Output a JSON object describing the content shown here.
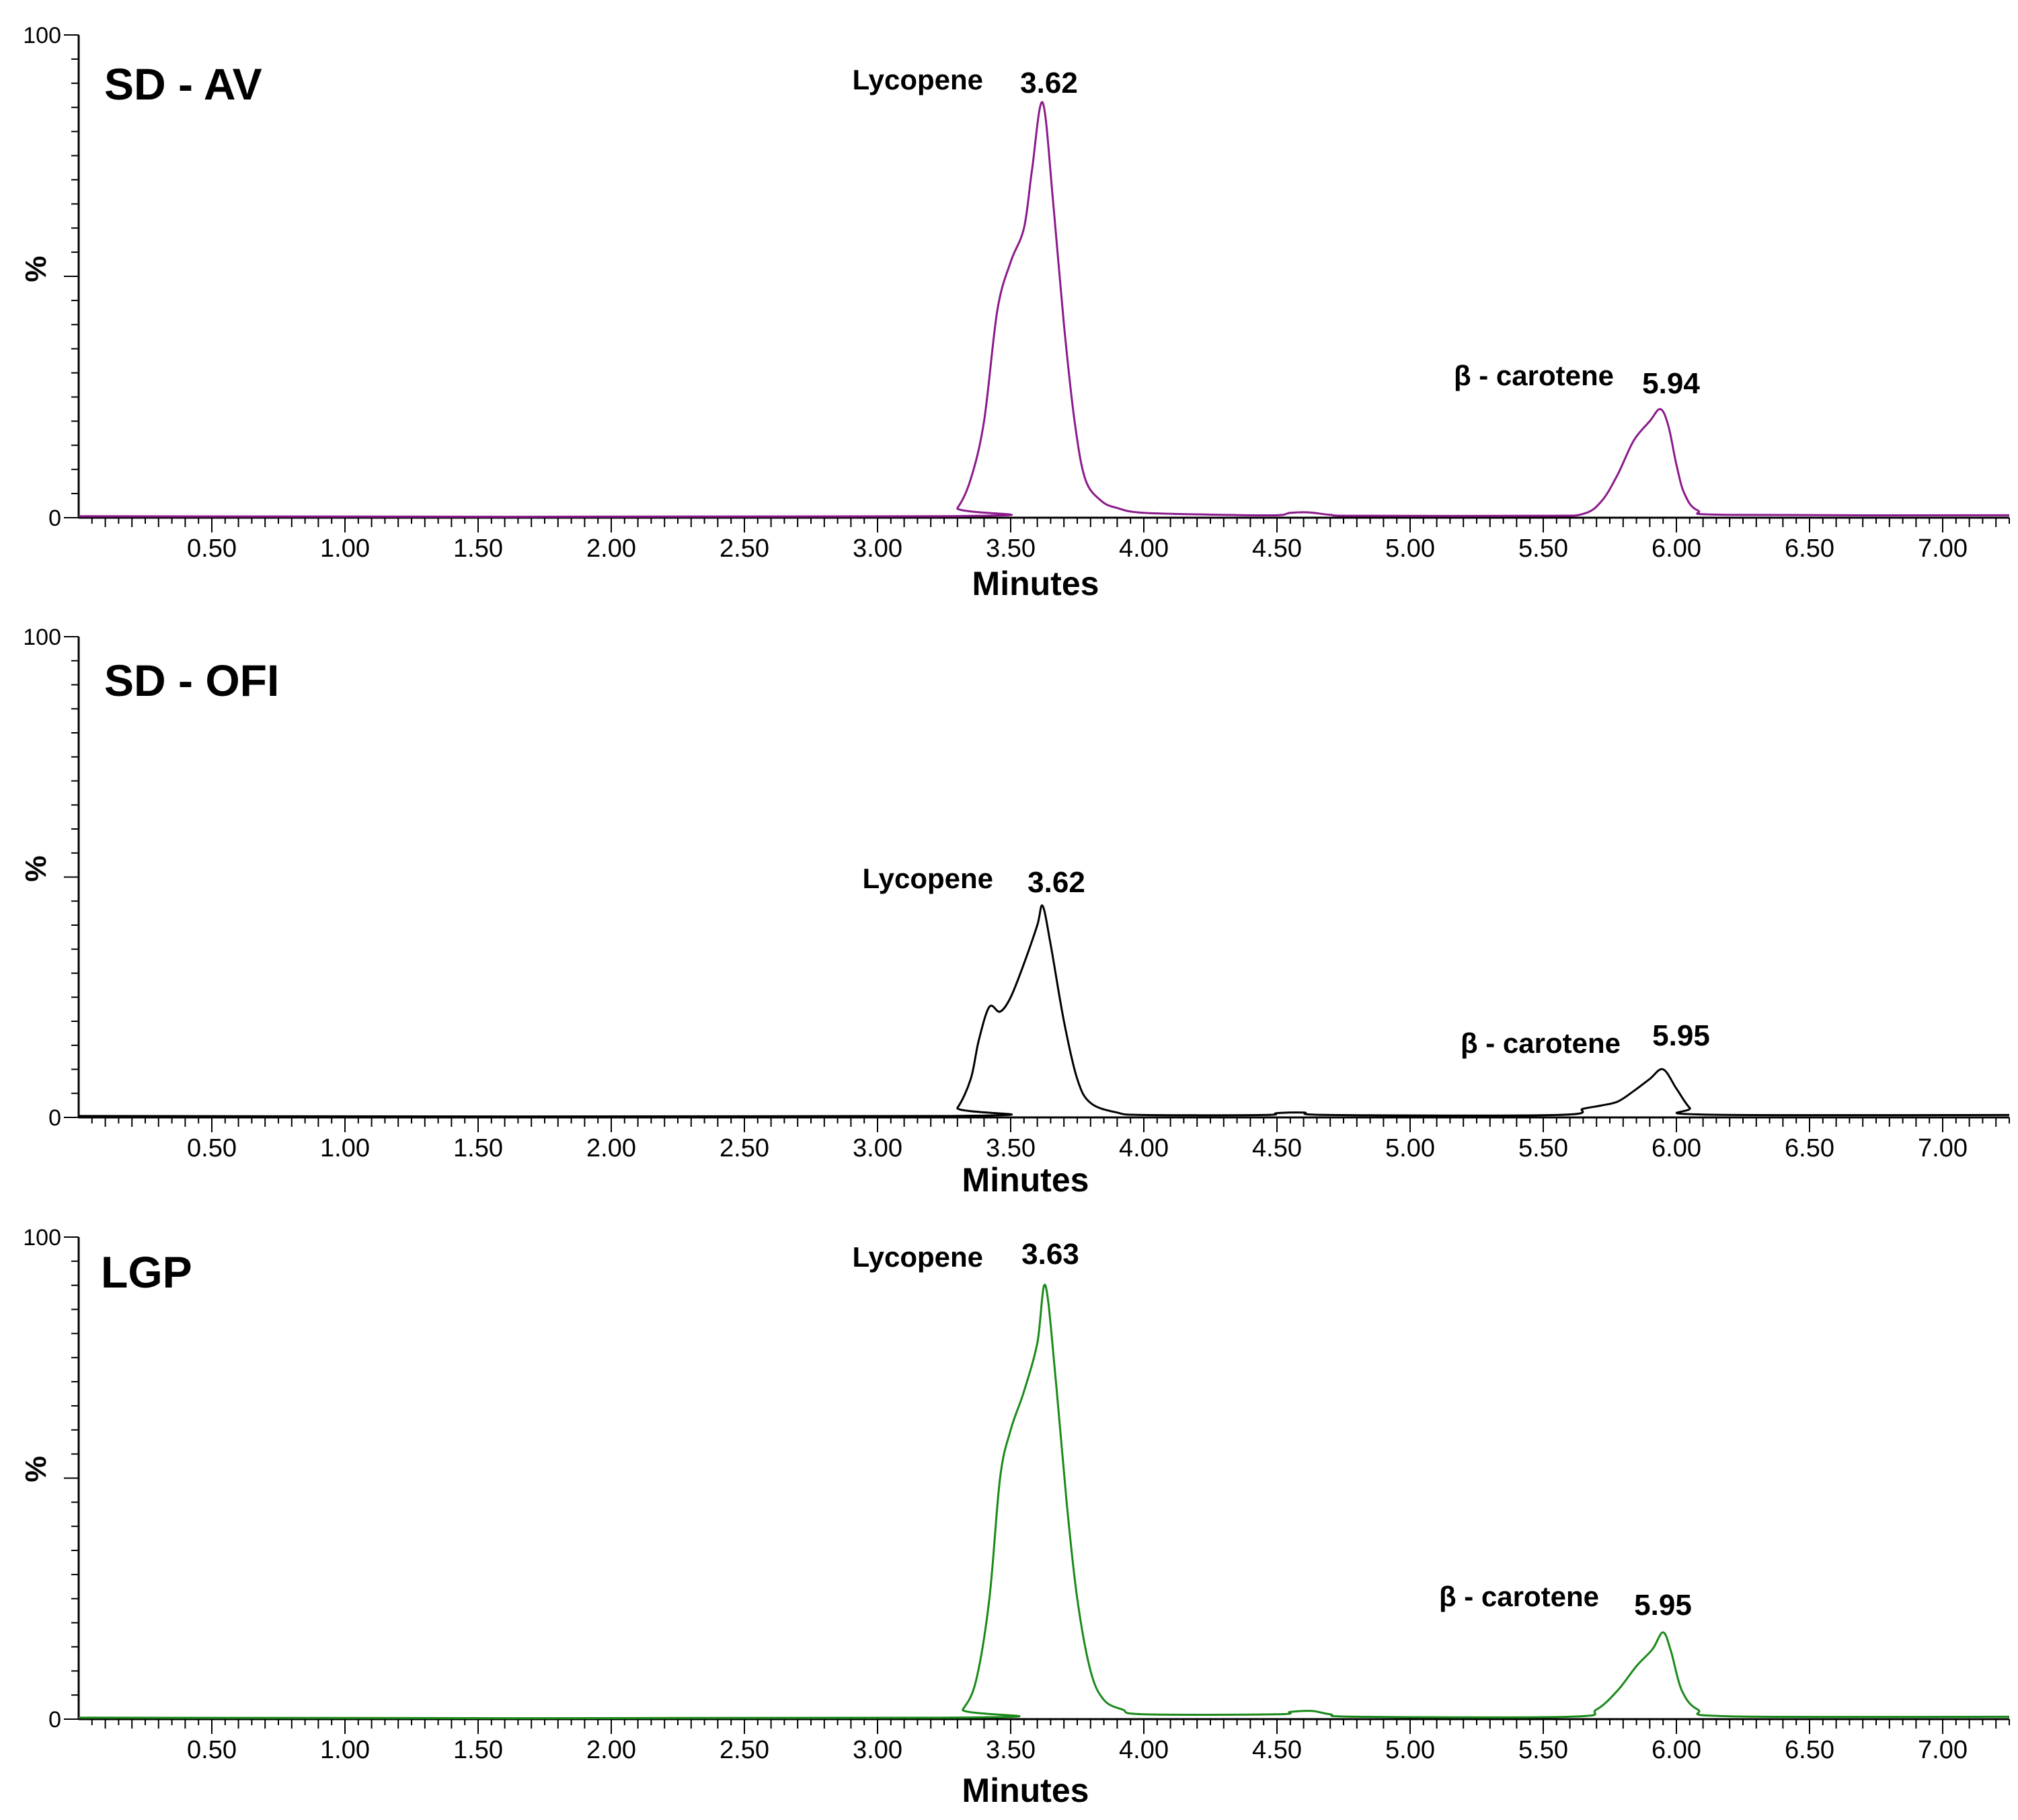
{
  "chart_data": [
    {
      "type": "line",
      "title": "SD - AV",
      "xlabel": "Minutes",
      "ylabel": "%",
      "xlim": [
        0,
        7.25
      ],
      "ylim": [
        0,
        100
      ],
      "x_ticks": [
        "0.50",
        "1.00",
        "1.50",
        "2.00",
        "2.50",
        "3.00",
        "3.50",
        "4.00",
        "4.50",
        "5.00",
        "5.50",
        "6.00",
        "6.50",
        "7.00"
      ],
      "y_ticks": [
        "0",
        "100"
      ],
      "grid": false,
      "series": [
        {
          "color": "#8b1a8b",
          "points": [
            [
              0,
              0.3
            ],
            [
              3.25,
              0.3
            ],
            [
              3.3,
              2
            ],
            [
              3.35,
              8
            ],
            [
              3.4,
              20
            ],
            [
              3.45,
              43
            ],
            [
              3.5,
              53
            ],
            [
              3.55,
              60
            ],
            [
              3.58,
              72
            ],
            [
              3.62,
              86
            ],
            [
              3.66,
              65
            ],
            [
              3.7,
              40
            ],
            [
              3.74,
              20
            ],
            [
              3.78,
              8
            ],
            [
              3.84,
              3.5
            ],
            [
              3.9,
              2
            ],
            [
              4.0,
              1
            ],
            [
              4.3,
              0.6
            ],
            [
              4.5,
              0.5
            ],
            [
              4.55,
              1
            ],
            [
              4.62,
              1.1
            ],
            [
              4.7,
              0.6
            ],
            [
              4.8,
              0.4
            ],
            [
              5.5,
              0.4
            ],
            [
              5.65,
              0.8
            ],
            [
              5.72,
              3.5
            ],
            [
              5.78,
              9
            ],
            [
              5.84,
              16
            ],
            [
              5.9,
              20
            ],
            [
              5.94,
              22.5
            ],
            [
              5.97,
              19
            ],
            [
              6.0,
              11
            ],
            [
              6.03,
              5
            ],
            [
              6.08,
              1.5
            ],
            [
              6.2,
              0.6
            ],
            [
              7.25,
              0.5
            ]
          ]
        }
      ],
      "annotations": [
        {
          "name": "Lycopene",
          "rt": "3.62"
        },
        {
          "name": "β - carotene",
          "rt": "5.94"
        }
      ]
    },
    {
      "type": "line",
      "title": "SD - OFI",
      "xlabel": "Minutes",
      "ylabel": "%",
      "xlim": [
        0,
        7.25
      ],
      "ylim": [
        0,
        100
      ],
      "x_ticks": [
        "0.50",
        "1.00",
        "1.50",
        "2.00",
        "2.50",
        "3.00",
        "3.50",
        "4.00",
        "4.50",
        "5.00",
        "5.50",
        "6.00",
        "6.50",
        "7.00"
      ],
      "y_ticks": [
        "0",
        "100"
      ],
      "grid": false,
      "series": [
        {
          "color": "#000000",
          "points": [
            [
              0,
              0.3
            ],
            [
              3.25,
              0.3
            ],
            [
              3.3,
              2
            ],
            [
              3.35,
              8
            ],
            [
              3.38,
              16
            ],
            [
              3.42,
              23
            ],
            [
              3.46,
              22
            ],
            [
              3.5,
              25
            ],
            [
              3.55,
              32
            ],
            [
              3.6,
              40
            ],
            [
              3.62,
              44
            ],
            [
              3.65,
              36
            ],
            [
              3.7,
              20
            ],
            [
              3.75,
              8
            ],
            [
              3.8,
              3
            ],
            [
              3.9,
              1
            ],
            [
              4.0,
              0.5
            ],
            [
              4.45,
              0.5
            ],
            [
              4.5,
              0.9
            ],
            [
              4.6,
              1
            ],
            [
              4.7,
              0.5
            ],
            [
              5.55,
              0.5
            ],
            [
              5.65,
              1.8
            ],
            [
              5.72,
              2.5
            ],
            [
              5.78,
              3.3
            ],
            [
              5.84,
              5.5
            ],
            [
              5.9,
              8
            ],
            [
              5.95,
              10
            ],
            [
              6.0,
              6
            ],
            [
              6.05,
              2
            ],
            [
              6.1,
              0.6
            ],
            [
              7.25,
              0.5
            ]
          ]
        }
      ],
      "annotations": [
        {
          "name": "Lycopene",
          "rt": "3.62"
        },
        {
          "name": "β - carotene",
          "rt": "5.95"
        }
      ]
    },
    {
      "type": "line",
      "title": "LGP",
      "xlabel": "Minutes",
      "ylabel": "%",
      "xlim": [
        0,
        7.25
      ],
      "ylim": [
        0,
        100
      ],
      "x_ticks": [
        "0.50",
        "1.00",
        "1.50",
        "2.00",
        "2.50",
        "3.00",
        "3.50",
        "4.00",
        "4.50",
        "5.00",
        "5.50",
        "6.00",
        "6.50",
        "7.00"
      ],
      "y_ticks": [
        "0",
        "100"
      ],
      "grid": false,
      "series": [
        {
          "color": "#1a8a1a",
          "points": [
            [
              0,
              0.3
            ],
            [
              3.28,
              0.3
            ],
            [
              3.32,
              2
            ],
            [
              3.37,
              8
            ],
            [
              3.42,
              25
            ],
            [
              3.46,
              50
            ],
            [
              3.5,
              60
            ],
            [
              3.55,
              68
            ],
            [
              3.6,
              78
            ],
            [
              3.63,
              90
            ],
            [
              3.67,
              70
            ],
            [
              3.71,
              45
            ],
            [
              3.75,
              25
            ],
            [
              3.8,
              10
            ],
            [
              3.85,
              4
            ],
            [
              3.92,
              2
            ],
            [
              4.0,
              1
            ],
            [
              4.5,
              1
            ],
            [
              4.55,
              1.5
            ],
            [
              4.63,
              1.7
            ],
            [
              4.7,
              1
            ],
            [
              4.8,
              0.5
            ],
            [
              5.6,
              0.5
            ],
            [
              5.7,
              2
            ],
            [
              5.78,
              6
            ],
            [
              5.85,
              11
            ],
            [
              5.91,
              14.5
            ],
            [
              5.95,
              18
            ],
            [
              5.98,
              14
            ],
            [
              6.02,
              6
            ],
            [
              6.08,
              2
            ],
            [
              6.2,
              0.6
            ],
            [
              7.25,
              0.5
            ]
          ]
        }
      ],
      "annotations": [
        {
          "name": "Lycopene",
          "rt": "3.63"
        },
        {
          "name": "β - carotene",
          "rt": "5.95"
        }
      ]
    }
  ]
}
